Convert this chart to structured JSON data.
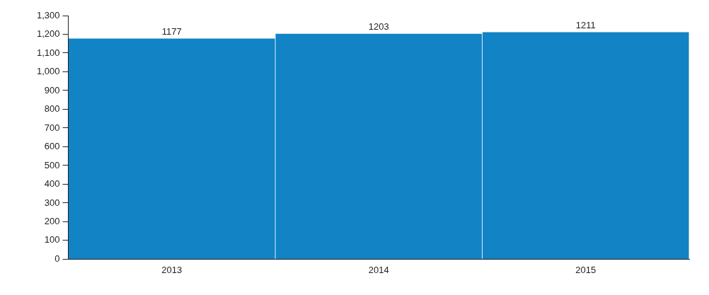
{
  "chart_data": {
    "type": "bar",
    "categories": [
      "2013",
      "2014",
      "2015"
    ],
    "values": [
      1177,
      1203,
      1211
    ],
    "color": "#1283c4",
    "ylim": [
      0,
      1300
    ],
    "yticks": [
      {
        "value": 0,
        "label": "0"
      },
      {
        "value": 100,
        "label": "100"
      },
      {
        "value": 200,
        "label": "200"
      },
      {
        "value": 300,
        "label": "300"
      },
      {
        "value": 400,
        "label": "400"
      },
      {
        "value": 500,
        "label": "500"
      },
      {
        "value": 600,
        "label": "600"
      },
      {
        "value": 700,
        "label": "700"
      },
      {
        "value": 800,
        "label": "800"
      },
      {
        "value": 900,
        "label": "900"
      },
      {
        "value": 1000,
        "label": "1,000"
      },
      {
        "value": 1100,
        "label": "1,100"
      },
      {
        "value": 1200,
        "label": "1,200"
      },
      {
        "value": 1300,
        "label": "1,300"
      }
    ],
    "data_labels": true,
    "grid": false,
    "legend": false
  }
}
